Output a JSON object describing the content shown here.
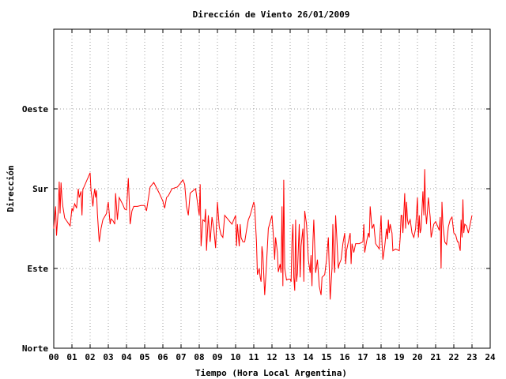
{
  "chart_data": {
    "type": "line",
    "title": "Dirección de Viento 26/01/2009",
    "xlabel": "Tiempo (Hora Local Argentina)",
    "ylabel": "Dirección",
    "xlim": [
      0,
      24
    ],
    "ylim": [
      0,
      360
    ],
    "x_ticks": [
      "00",
      "01",
      "02",
      "03",
      "04",
      "05",
      "06",
      "07",
      "08",
      "09",
      "10",
      "11",
      "12",
      "13",
      "14",
      "15",
      "16",
      "17",
      "18",
      "19",
      "20",
      "21",
      "22",
      "23",
      "24"
    ],
    "y_ticks": [
      {
        "value": 0,
        "label": "Norte"
      },
      {
        "value": 90,
        "label": "Este"
      },
      {
        "value": 180,
        "label": "Sur"
      },
      {
        "value": 270,
        "label": "Oeste"
      }
    ],
    "grid": true,
    "series": [
      {
        "color": "#ff0000",
        "points": [
          [
            0.0,
            135
          ],
          [
            0.1,
            160
          ],
          [
            0.15,
            127
          ],
          [
            0.25,
            158
          ],
          [
            0.3,
            188
          ],
          [
            0.35,
            152
          ],
          [
            0.4,
            187
          ],
          [
            0.45,
            170
          ],
          [
            0.5,
            160
          ],
          [
            0.6,
            147
          ],
          [
            0.7,
            144
          ],
          [
            0.8,
            141
          ],
          [
            0.9,
            138
          ],
          [
            1.0,
            158
          ],
          [
            1.05,
            155
          ],
          [
            1.15,
            163
          ],
          [
            1.25,
            158
          ],
          [
            1.35,
            180
          ],
          [
            1.4,
            170
          ],
          [
            1.5,
            177
          ],
          [
            1.55,
            150
          ],
          [
            1.6,
            179
          ],
          [
            2.0,
            198
          ],
          [
            2.05,
            178
          ],
          [
            2.1,
            170
          ],
          [
            2.15,
            160
          ],
          [
            2.2,
            172
          ],
          [
            2.25,
            180
          ],
          [
            2.3,
            170
          ],
          [
            2.35,
            178
          ],
          [
            2.4,
            152
          ],
          [
            2.5,
            120
          ],
          [
            2.6,
            135
          ],
          [
            2.7,
            145
          ],
          [
            2.9,
            152
          ],
          [
            2.95,
            160
          ],
          [
            3.0,
            165
          ],
          [
            3.1,
            140
          ],
          [
            3.15,
            146
          ],
          [
            3.25,
            144
          ],
          [
            3.35,
            140
          ],
          [
            3.4,
            175
          ],
          [
            3.5,
            145
          ],
          [
            3.6,
            170
          ],
          [
            3.8,
            162
          ],
          [
            3.9,
            157
          ],
          [
            4.0,
            156
          ],
          [
            4.1,
            192
          ],
          [
            4.2,
            140
          ],
          [
            4.3,
            155
          ],
          [
            4.4,
            160
          ],
          [
            4.6,
            160
          ],
          [
            4.8,
            161
          ],
          [
            5.0,
            161
          ],
          [
            5.1,
            155
          ],
          [
            5.3,
            182
          ],
          [
            5.5,
            187
          ],
          [
            5.8,
            175
          ],
          [
            6.0,
            166
          ],
          [
            6.1,
            158
          ],
          [
            6.2,
            170
          ],
          [
            6.3,
            172
          ],
          [
            6.5,
            180
          ],
          [
            6.8,
            182
          ],
          [
            7.0,
            187
          ],
          [
            7.1,
            190
          ],
          [
            7.2,
            185
          ],
          [
            7.3,
            160
          ],
          [
            7.4,
            150
          ],
          [
            7.5,
            175
          ],
          [
            7.8,
            180
          ],
          [
            8.0,
            150
          ],
          [
            8.05,
            185
          ],
          [
            8.1,
            115
          ],
          [
            8.2,
            145
          ],
          [
            8.3,
            143
          ],
          [
            8.35,
            157
          ],
          [
            8.4,
            110
          ],
          [
            8.5,
            150
          ],
          [
            8.6,
            120
          ],
          [
            8.7,
            148
          ],
          [
            8.8,
            135
          ],
          [
            8.9,
            113
          ],
          [
            9.0,
            165
          ],
          [
            9.1,
            137
          ],
          [
            9.2,
            128
          ],
          [
            9.3,
            125
          ],
          [
            9.4,
            150
          ],
          [
            9.6,
            145
          ],
          [
            9.8,
            140
          ],
          [
            10.0,
            150
          ],
          [
            10.05,
            115
          ],
          [
            10.1,
            140
          ],
          [
            10.2,
            115
          ],
          [
            10.25,
            140
          ],
          [
            10.3,
            125
          ],
          [
            10.4,
            120
          ],
          [
            10.5,
            120
          ],
          [
            10.6,
            133
          ],
          [
            10.7,
            145
          ],
          [
            10.8,
            150
          ],
          [
            11.0,
            165
          ],
          [
            11.05,
            160
          ],
          [
            11.15,
            120
          ],
          [
            11.2,
            83
          ],
          [
            11.3,
            90
          ],
          [
            11.35,
            80
          ],
          [
            11.4,
            75
          ],
          [
            11.45,
            115
          ],
          [
            11.5,
            105
          ],
          [
            11.6,
            60
          ],
          [
            11.7,
            95
          ],
          [
            11.8,
            135
          ],
          [
            12.0,
            150
          ],
          [
            12.1,
            120
          ],
          [
            12.15,
            100
          ],
          [
            12.2,
            125
          ],
          [
            12.3,
            108
          ],
          [
            12.35,
            86
          ],
          [
            12.45,
            95
          ],
          [
            12.5,
            85
          ],
          [
            12.55,
            160
          ],
          [
            12.6,
            70
          ],
          [
            12.65,
            190
          ],
          [
            12.7,
            90
          ],
          [
            12.8,
            77
          ],
          [
            12.9,
            78
          ],
          [
            13.0,
            78
          ],
          [
            13.05,
            75
          ],
          [
            13.1,
            120
          ],
          [
            13.15,
            140
          ],
          [
            13.2,
            80
          ],
          [
            13.25,
            65
          ],
          [
            13.3,
            145
          ],
          [
            13.35,
            75
          ],
          [
            13.4,
            85
          ],
          [
            13.5,
            140
          ],
          [
            13.55,
            80
          ],
          [
            13.6,
            115
          ],
          [
            13.7,
            135
          ],
          [
            13.75,
            75
          ],
          [
            13.8,
            155
          ],
          [
            13.9,
            140
          ],
          [
            14.0,
            100
          ],
          [
            14.1,
            85
          ],
          [
            14.15,
            105
          ],
          [
            14.2,
            70
          ],
          [
            14.25,
            120
          ],
          [
            14.3,
            145
          ],
          [
            14.4,
            85
          ],
          [
            14.5,
            100
          ],
          [
            14.6,
            70
          ],
          [
            14.7,
            60
          ],
          [
            14.75,
            80
          ],
          [
            14.9,
            83
          ],
          [
            15.0,
            100
          ],
          [
            15.1,
            125
          ],
          [
            15.2,
            55
          ],
          [
            15.3,
            90
          ],
          [
            15.35,
            140
          ],
          [
            15.4,
            100
          ],
          [
            15.45,
            85
          ],
          [
            15.5,
            150
          ],
          [
            15.55,
            130
          ],
          [
            15.6,
            110
          ],
          [
            15.65,
            90
          ],
          [
            15.7,
            95
          ],
          [
            15.8,
            100
          ],
          [
            15.9,
            118
          ],
          [
            16.0,
            130
          ],
          [
            16.05,
            95
          ],
          [
            16.1,
            110
          ],
          [
            16.2,
            120
          ],
          [
            16.3,
            130
          ],
          [
            16.35,
            95
          ],
          [
            16.4,
            118
          ],
          [
            16.5,
            108
          ],
          [
            16.6,
            118
          ],
          [
            16.8,
            118
          ],
          [
            17.0,
            120
          ],
          [
            17.05,
            140
          ],
          [
            17.1,
            108
          ],
          [
            17.2,
            120
          ],
          [
            17.3,
            130
          ],
          [
            17.35,
            125
          ],
          [
            17.4,
            160
          ],
          [
            17.5,
            135
          ],
          [
            17.6,
            140
          ],
          [
            17.7,
            118
          ],
          [
            17.9,
            112
          ],
          [
            18.0,
            150
          ],
          [
            18.05,
            120
          ],
          [
            18.1,
            100
          ],
          [
            18.2,
            115
          ],
          [
            18.3,
            135
          ],
          [
            18.35,
            123
          ],
          [
            18.4,
            145
          ],
          [
            18.45,
            130
          ],
          [
            18.5,
            140
          ],
          [
            18.6,
            130
          ],
          [
            18.65,
            110
          ],
          [
            18.8,
            112
          ],
          [
            19.0,
            110
          ],
          [
            19.05,
            125
          ],
          [
            19.1,
            150
          ],
          [
            19.15,
            150
          ],
          [
            19.2,
            130
          ],
          [
            19.3,
            175
          ],
          [
            19.35,
            135
          ],
          [
            19.4,
            165
          ],
          [
            19.45,
            145
          ],
          [
            19.5,
            140
          ],
          [
            19.6,
            145
          ],
          [
            19.7,
            130
          ],
          [
            19.8,
            125
          ],
          [
            19.9,
            135
          ],
          [
            20.0,
            170
          ],
          [
            20.05,
            125
          ],
          [
            20.1,
            150
          ],
          [
            20.15,
            130
          ],
          [
            20.2,
            135
          ],
          [
            20.3,
            177
          ],
          [
            20.35,
            150
          ],
          [
            20.4,
            202
          ],
          [
            20.45,
            155
          ],
          [
            20.5,
            140
          ],
          [
            20.55,
            155
          ],
          [
            20.6,
            170
          ],
          [
            20.7,
            148
          ],
          [
            20.75,
            125
          ],
          [
            20.8,
            130
          ],
          [
            20.9,
            140
          ],
          [
            21.0,
            143
          ],
          [
            21.2,
            133
          ],
          [
            21.25,
            148
          ],
          [
            21.3,
            90
          ],
          [
            21.35,
            165
          ],
          [
            21.4,
            140
          ],
          [
            21.5,
            120
          ],
          [
            21.6,
            117
          ],
          [
            21.7,
            137
          ],
          [
            21.8,
            145
          ],
          [
            21.9,
            148
          ],
          [
            22.0,
            130
          ],
          [
            22.1,
            128
          ],
          [
            22.2,
            120
          ],
          [
            22.25,
            120
          ],
          [
            22.35,
            110
          ],
          [
            22.4,
            145
          ],
          [
            22.45,
            125
          ],
          [
            22.5,
            168
          ],
          [
            22.55,
            130
          ],
          [
            22.6,
            140
          ],
          [
            22.7,
            138
          ],
          [
            22.8,
            130
          ],
          [
            22.9,
            140
          ],
          [
            23.0,
            150
          ]
        ]
      }
    ]
  }
}
